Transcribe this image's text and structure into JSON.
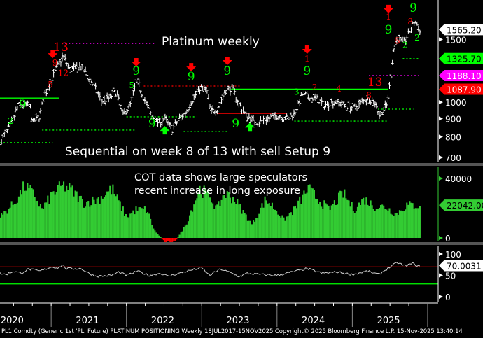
{
  "colors": {
    "bg": "#000000",
    "price": "#ffffff",
    "cot": "#33cc33",
    "cot_neg": "#ff0000",
    "rsi": "#cccccc",
    "red": "#ff0000",
    "green": "#00ff00",
    "magenta": "#ff00ff",
    "sep": "#555555"
  },
  "footer": "PL1 Comdty (Generic 1st 'PL' Future) PLATINUM POSITIONING Weekly 18JUL2017-15NOV2025  Copyright© 2025 Bloomberg Finance L.P.  15-Nov-2025 13:40:14",
  "chart_data": [
    {
      "type": "line",
      "panel": "price",
      "title": "Platinum weekly",
      "annotation": "Sequential on week 8 of 13 with sell Setup 9",
      "scale": "log",
      "xlim": [
        2020.32,
        2026.14
      ],
      "ylim": [
        678,
        1936
      ],
      "yticks": [
        700,
        800,
        900,
        1000,
        1500
      ],
      "last_value": "1565.20",
      "tags": [
        {
          "label": "1565.20",
          "value": 1565.2,
          "bg": "#ffffff",
          "fg": "#000000"
        },
        {
          "label": "1325.70",
          "value": 1325.7,
          "bg": "#00ff00",
          "fg": "#000000"
        },
        {
          "label": "1188.10",
          "value": 1188.1,
          "bg": "#ff00ff",
          "fg": "#ffffff"
        },
        {
          "label": "1087.90",
          "value": 1087.9,
          "bg": "#ff0000",
          "fg": "#ffffff"
        }
      ],
      "series": [
        [
          2020.34,
          783
        ],
        [
          2020.43,
          838
        ],
        [
          2020.48,
          877
        ],
        [
          2020.57,
          982
        ],
        [
          2020.71,
          982
        ],
        [
          2020.76,
          877
        ],
        [
          2020.85,
          918
        ],
        [
          2020.9,
          1027
        ],
        [
          2021.02,
          1177
        ],
        [
          2021.11,
          1289
        ],
        [
          2021.16,
          1348
        ],
        [
          2021.25,
          1231
        ],
        [
          2021.39,
          1260
        ],
        [
          2021.49,
          1177
        ],
        [
          2021.58,
          1100
        ],
        [
          2021.67,
          1005
        ],
        [
          2021.77,
          1027
        ],
        [
          2021.86,
          1075
        ],
        [
          2021.95,
          918
        ],
        [
          2022.05,
          982
        ],
        [
          2022.14,
          1151
        ],
        [
          2022.23,
          1027
        ],
        [
          2022.33,
          918
        ],
        [
          2022.42,
          877
        ],
        [
          2022.51,
          897
        ],
        [
          2022.61,
          838
        ],
        [
          2022.7,
          897
        ],
        [
          2022.79,
          939
        ],
        [
          2022.89,
          1027
        ],
        [
          2022.98,
          1100
        ],
        [
          2023.07,
          1075
        ],
        [
          2023.12,
          939
        ],
        [
          2023.21,
          960
        ],
        [
          2023.31,
          1075
        ],
        [
          2023.4,
          1100
        ],
        [
          2023.5,
          982
        ],
        [
          2023.59,
          918
        ],
        [
          2023.73,
          877
        ],
        [
          2023.87,
          897
        ],
        [
          2024.01,
          918
        ],
        [
          2024.15,
          897
        ],
        [
          2024.24,
          939
        ],
        [
          2024.34,
          1051
        ],
        [
          2024.43,
          1027
        ],
        [
          2024.52,
          1027
        ],
        [
          2024.62,
          982
        ],
        [
          2024.76,
          1005
        ],
        [
          2024.9,
          982
        ],
        [
          2025.04,
          960
        ],
        [
          2025.13,
          1005
        ],
        [
          2025.22,
          1027
        ],
        [
          2025.32,
          982
        ],
        [
          2025.36,
          918
        ],
        [
          2025.46,
          982
        ],
        [
          2025.5,
          1125
        ],
        [
          2025.53,
          1289
        ],
        [
          2025.55,
          1411
        ],
        [
          2025.6,
          1510
        ],
        [
          2025.69,
          1476
        ],
        [
          2025.74,
          1545
        ],
        [
          2025.83,
          1690
        ],
        [
          2025.88,
          1615
        ],
        [
          2025.9,
          1565.2
        ]
      ],
      "levels": [
        {
          "from": 2020.32,
          "to": 2021.02,
          "value": 770,
          "color": "#00ff00",
          "style": "dotted"
        },
        {
          "from": 2020.88,
          "to": 2022.13,
          "value": 835,
          "color": "#00ff00",
          "style": "dotted"
        },
        {
          "from": 2022.0,
          "to": 2022.93,
          "value": 910,
          "color": "#00ff00",
          "style": "dotted"
        },
        {
          "from": 2022.76,
          "to": 2023.34,
          "value": 827,
          "color": "#00ff00",
          "style": "dotted"
        },
        {
          "from": 2022.23,
          "to": 2023.53,
          "value": 1110,
          "color": "#ff0000",
          "style": "dotted"
        },
        {
          "from": 2020.32,
          "to": 2021.11,
          "value": 1027,
          "color": "#00ff00",
          "style": "solid"
        },
        {
          "from": 2023.39,
          "to": 2025.48,
          "value": 1087.9,
          "color": "#00ff00",
          "style": "solid"
        },
        {
          "from": 2023.2,
          "to": 2024.13,
          "value": 930,
          "color": "#ff0000",
          "style": "solid"
        },
        {
          "from": 2021.14,
          "to": 2022.37,
          "value": 1462,
          "color": "#ff00ff",
          "style": "dotted"
        },
        {
          "from": 2025.22,
          "to": 2025.88,
          "value": 1188.1,
          "color": "#ff00ff",
          "style": "dotted"
        },
        {
          "from": 2025.67,
          "to": 2025.88,
          "value": 1325.7,
          "color": "#00ff00",
          "style": "dotted"
        },
        {
          "from": 2025.34,
          "to": 2025.81,
          "value": 956,
          "color": "#00ff00",
          "style": "dotted"
        },
        {
          "from": 2024.23,
          "to": 2025.48,
          "value": 885,
          "color": "#00ff00",
          "style": "dotted"
        }
      ],
      "signals": [
        {
          "t": 2021.02,
          "p": 1360,
          "kind": "sell-arrow"
        },
        {
          "t": 2022.13,
          "p": 1289,
          "kind": "sell-arrow"
        },
        {
          "t": 2022.86,
          "p": 1248,
          "kind": "sell-arrow"
        },
        {
          "t": 2023.34,
          "p": 1300,
          "kind": "sell-arrow"
        },
        {
          "t": 2024.4,
          "p": 1398,
          "kind": "sell-arrow"
        },
        {
          "t": 2025.48,
          "p": 1818,
          "kind": "sell-arrow"
        },
        {
          "t": 2022.51,
          "p": 838,
          "kind": "buy-arrow"
        },
        {
          "t": 2023.64,
          "p": 857,
          "kind": "buy-arrow"
        }
      ],
      "counts": [
        {
          "t": 2021.13,
          "p": 1392,
          "text": "13",
          "color": "#ff0000",
          "big": true
        },
        {
          "t": 2025.3,
          "p": 1110,
          "text": "13",
          "color": "#ff0000",
          "big": true
        },
        {
          "t": 2022.13,
          "p": 1193,
          "text": "9",
          "color": "#00ff00",
          "big": true
        },
        {
          "t": 2022.86,
          "p": 1151,
          "text": "9",
          "color": "#00ff00",
          "big": true
        },
        {
          "t": 2023.34,
          "p": 1193,
          "text": "9",
          "color": "#00ff00",
          "big": true
        },
        {
          "t": 2024.4,
          "p": 1193,
          "text": "9",
          "color": "#00ff00",
          "big": true
        },
        {
          "t": 2025.48,
          "p": 1558,
          "text": "9",
          "color": "#00ff00",
          "big": true
        },
        {
          "t": 2025.81,
          "p": 1792,
          "text": "9",
          "color": "#00ff00",
          "big": true
        },
        {
          "t": 2024.4,
          "p": 1300,
          "text": "1",
          "color": "#ff0000",
          "big": false
        },
        {
          "t": 2025.48,
          "p": 1706,
          "text": "1",
          "color": "#ff0000",
          "big": false
        },
        {
          "t": 2025.77,
          "p": 1867,
          "text": "8",
          "color": "#ff0000",
          "big": false
        },
        {
          "t": 2025.86,
          "p": 1489,
          "text": "2",
          "color": "#00ff00",
          "big": false
        },
        {
          "t": 2020.46,
          "p": 870,
          "text": "2",
          "color": "#00ff00",
          "big": false
        },
        {
          "t": 2020.62,
          "p": 960,
          "text": "9",
          "color": "#00ff00",
          "big": true
        },
        {
          "t": 2021.05,
          "p": 1265,
          "text": "9",
          "color": "#ff0000",
          "big": false
        },
        {
          "t": 2021.16,
          "p": 1250,
          "text": "12",
          "color": "#ff0000",
          "big": false
        },
        {
          "t": 2020.99,
          "p": 1100,
          "text": "5",
          "color": "#ff0000",
          "big": false
        },
        {
          "t": 2022.07,
          "p": 1110,
          "text": "5",
          "color": "#00ff00",
          "big": false
        },
        {
          "t": 2022.34,
          "p": 850,
          "text": "9",
          "color": "#00ff00",
          "big": true
        },
        {
          "t": 2023.45,
          "p": 850,
          "text": "9",
          "color": "#00ff00",
          "big": true
        },
        {
          "t": 2024.26,
          "p": 1050,
          "text": "3",
          "color": "#00ff00",
          "big": false
        },
        {
          "t": 2024.5,
          "p": 1080,
          "text": "2",
          "color": "#ff0000",
          "big": false
        },
        {
          "t": 2024.82,
          "p": 1070,
          "text": "4",
          "color": "#ff0000",
          "big": false
        },
        {
          "t": 2025.22,
          "p": 1040,
          "text": "8",
          "color": "#ff0000",
          "big": false
        },
        {
          "t": 2025.6,
          "p": 1460,
          "text": "5",
          "color": "#ff0000",
          "big": false
        },
        {
          "t": 2025.7,
          "p": 1420,
          "text": "2",
          "color": "#00ff00",
          "big": false
        }
      ]
    },
    {
      "type": "bar",
      "panel": "cot",
      "annotation": [
        "COT data shows large speculators",
        "recent increase in long exposure"
      ],
      "xlim": [
        2020.32,
        2026.14
      ],
      "ylim": [
        -2350,
        48000
      ],
      "yticks": [
        0,
        40000
      ],
      "last_value": "22042.00",
      "series": [
        [
          2020.32,
          14000
        ],
        [
          2020.51,
          23500
        ],
        [
          2020.65,
          35000
        ],
        [
          2020.79,
          28000
        ],
        [
          2020.88,
          19000
        ],
        [
          2021.02,
          30000
        ],
        [
          2021.16,
          35000
        ],
        [
          2021.25,
          33000
        ],
        [
          2021.44,
          23500
        ],
        [
          2021.62,
          26000
        ],
        [
          2021.81,
          33000
        ],
        [
          2022.0,
          14000
        ],
        [
          2022.13,
          19000
        ],
        [
          2022.27,
          19000
        ],
        [
          2022.37,
          5000
        ],
        [
          2022.51,
          -2500
        ],
        [
          2022.65,
          -2500
        ],
        [
          2022.79,
          9000
        ],
        [
          2022.97,
          33000
        ],
        [
          2023.11,
          28000
        ],
        [
          2023.2,
          19000
        ],
        [
          2023.3,
          30000
        ],
        [
          2023.44,
          26000
        ],
        [
          2023.53,
          19000
        ],
        [
          2023.67,
          9000
        ],
        [
          2023.85,
          26000
        ],
        [
          2023.99,
          19000
        ],
        [
          2024.09,
          12000
        ],
        [
          2024.23,
          19000
        ],
        [
          2024.41,
          33000
        ],
        [
          2024.55,
          26000
        ],
        [
          2024.69,
          19000
        ],
        [
          2024.88,
          30000
        ],
        [
          2025.02,
          19000
        ],
        [
          2025.16,
          26000
        ],
        [
          2025.3,
          21000
        ],
        [
          2025.44,
          21000
        ],
        [
          2025.58,
          16000
        ],
        [
          2025.72,
          22000
        ],
        [
          2025.9,
          22042
        ]
      ]
    },
    {
      "type": "line",
      "panel": "rsi",
      "xlim": [
        2020.32,
        2026.14
      ],
      "ylim": [
        -13,
        118
      ],
      "yticks": [
        0,
        50,
        100
      ],
      "levels": [
        {
          "value": 70,
          "color": "#ff0000"
        },
        {
          "value": 30,
          "color": "#00ff00"
        }
      ],
      "last_value": "70.0031",
      "series": [
        [
          2020.32,
          55
        ],
        [
          2020.4,
          52
        ],
        [
          2020.5,
          60
        ],
        [
          2020.6,
          55
        ],
        [
          2020.7,
          65
        ],
        [
          2020.85,
          60
        ],
        [
          2021.0,
          70
        ],
        [
          2021.1,
          68
        ],
        [
          2021.15,
          75
        ],
        [
          2021.2,
          66
        ],
        [
          2021.4,
          66
        ],
        [
          2021.5,
          55
        ],
        [
          2021.6,
          48
        ],
        [
          2021.8,
          50
        ],
        [
          2021.9,
          58
        ],
        [
          2022.0,
          50
        ],
        [
          2022.15,
          60
        ],
        [
          2022.3,
          50
        ],
        [
          2022.45,
          55
        ],
        [
          2022.55,
          48
        ],
        [
          2022.7,
          55
        ],
        [
          2022.85,
          62
        ],
        [
          2023.0,
          68
        ],
        [
          2023.1,
          50
        ],
        [
          2023.25,
          65
        ],
        [
          2023.4,
          55
        ],
        [
          2023.5,
          47
        ],
        [
          2023.6,
          55
        ],
        [
          2023.8,
          52
        ],
        [
          2024.0,
          50
        ],
        [
          2024.2,
          58
        ],
        [
          2024.4,
          66
        ],
        [
          2024.6,
          55
        ],
        [
          2024.8,
          58
        ],
        [
          2025.0,
          52
        ],
        [
          2025.2,
          60
        ],
        [
          2025.35,
          52
        ],
        [
          2025.5,
          70
        ],
        [
          2025.6,
          80
        ],
        [
          2025.7,
          72
        ],
        [
          2025.8,
          78
        ],
        [
          2025.9,
          70.0031
        ]
      ]
    }
  ],
  "x_axis": {
    "labels": [
      {
        "text": "2020",
        "t": 2020.5
      },
      {
        "text": "2021",
        "t": 2021.5
      },
      {
        "text": "2022",
        "t": 2022.5
      },
      {
        "text": "2023",
        "t": 2023.5
      },
      {
        "text": "2024",
        "t": 2024.5
      },
      {
        "text": "2025",
        "t": 2025.5
      }
    ],
    "year_starts": [
      2021,
      2022,
      2023,
      2024,
      2025,
      2026
    ]
  }
}
